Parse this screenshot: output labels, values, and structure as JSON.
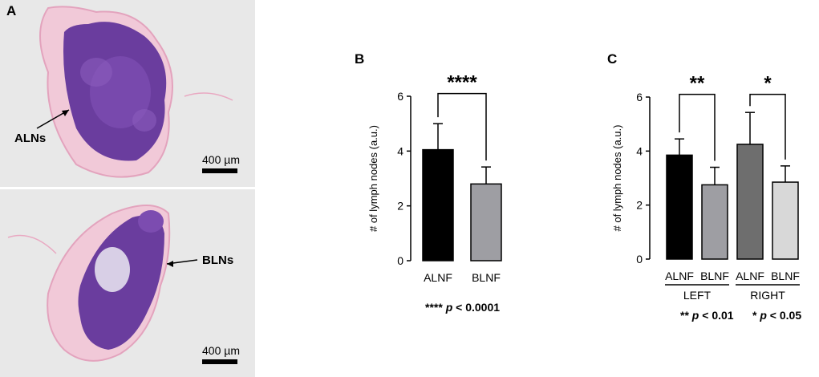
{
  "panels": {
    "a": {
      "letter": "A",
      "top": {
        "scale_text": "400 µm",
        "label": "ALNs"
      },
      "bottom": {
        "scale_text": "400 µm",
        "label": "BLNs"
      }
    },
    "b": {
      "letter": "B",
      "sig_stars": "****",
      "sig_p": "p",
      "sig_rest": " < 0.0001"
    },
    "c": {
      "letter": "C",
      "sig_left_stars": "**",
      "sig_left_p": "p",
      "sig_left_rest": " < 0.01",
      "sig_right_stars": "*",
      "sig_right_p": "p",
      "sig_right_rest": " < 0.05"
    }
  },
  "chart_data": [
    {
      "type": "bar",
      "panel": "B",
      "categories": [
        "ALNF",
        "BLNF"
      ],
      "values": [
        4.05,
        2.8
      ],
      "errors": [
        0.95,
        0.62
      ],
      "colors": [
        "#000000",
        "#9e9ea3"
      ],
      "ylabel": "# of lymph nodes (a.u.)",
      "ylim": [
        0,
        6
      ],
      "yticks": [
        0,
        2,
        4,
        6
      ],
      "significance": [
        {
          "from": 0,
          "to": 1,
          "label": "****"
        }
      ],
      "footnote": "**** p < 0.0001"
    },
    {
      "type": "bar",
      "panel": "C",
      "categories": [
        "ALNF",
        "BLNF",
        "ALNF",
        "BLNF"
      ],
      "groups": [
        {
          "label": "LEFT",
          "members": [
            0,
            1
          ]
        },
        {
          "label": "RIGHT",
          "members": [
            2,
            3
          ]
        }
      ],
      "values": [
        3.85,
        2.75,
        4.25,
        2.85
      ],
      "errors": [
        0.6,
        0.65,
        1.18,
        0.6
      ],
      "colors": [
        "#000000",
        "#9e9ea3",
        "#6e6e6e",
        "#d8d8d8"
      ],
      "ylabel": "# of lymph nodes (a.u.)",
      "ylim": [
        0,
        6
      ],
      "yticks": [
        0,
        2,
        4,
        6
      ],
      "significance": [
        {
          "from": 0,
          "to": 1,
          "label": "**"
        },
        {
          "from": 2,
          "to": 3,
          "label": "*"
        }
      ],
      "footnotes": [
        "** p < 0.01",
        "* p < 0.05"
      ]
    }
  ]
}
